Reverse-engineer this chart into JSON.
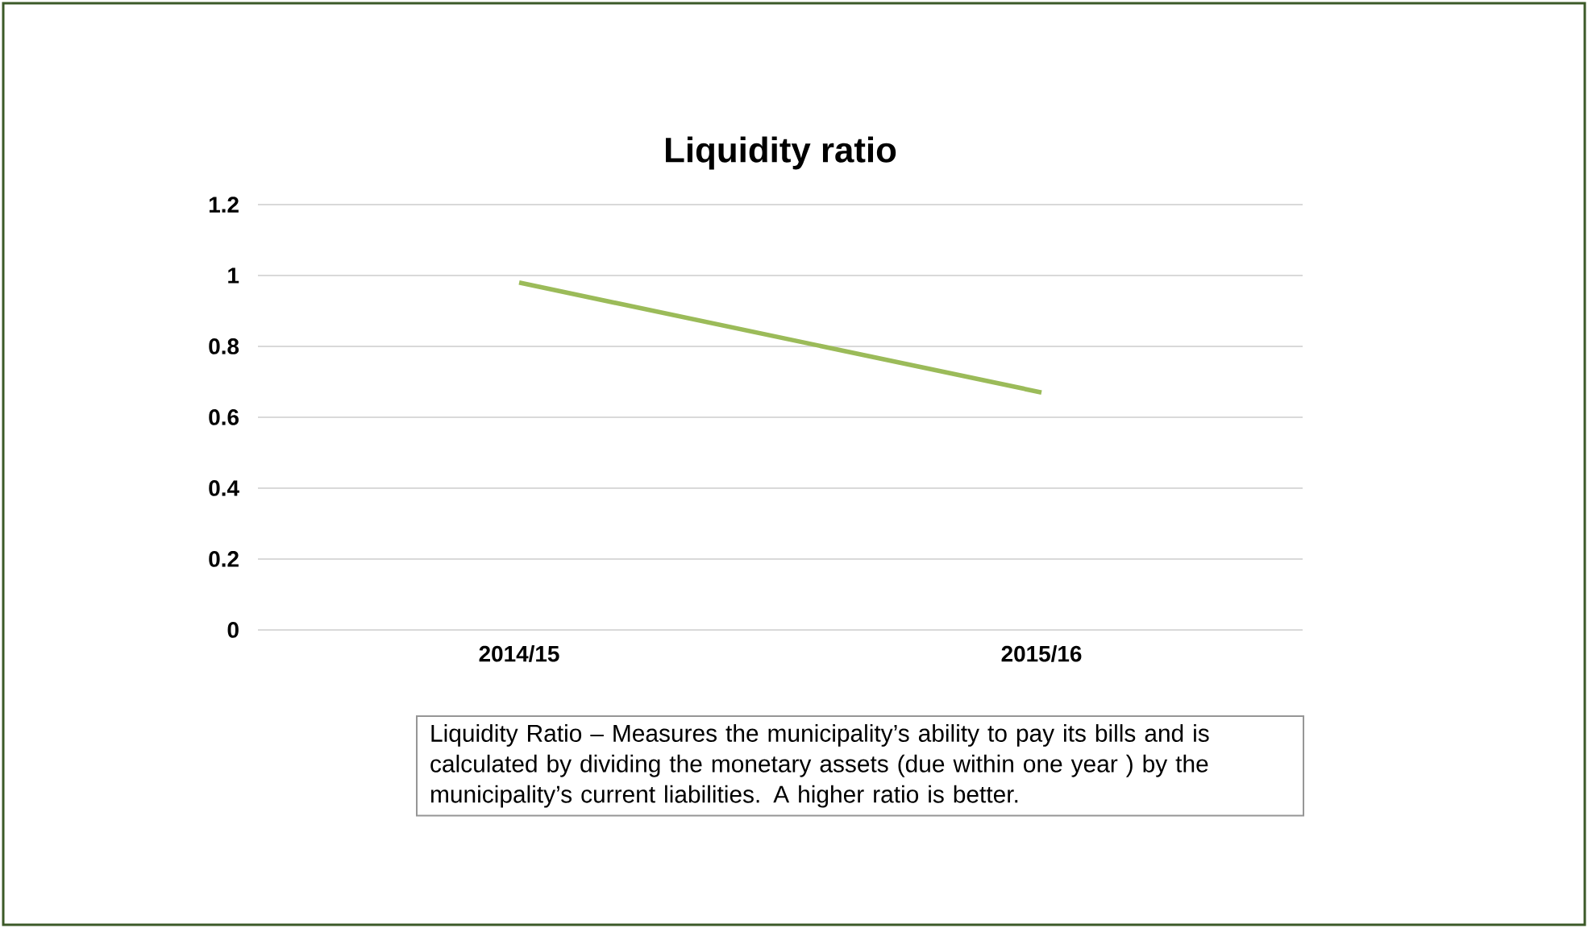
{
  "chart_data": {
    "type": "line",
    "title": "Liquidity ratio",
    "categories": [
      "2014/15",
      "2015/16"
    ],
    "series": [
      {
        "color": "#9bbb59",
        "values": [
          0.98,
          0.67
        ]
      }
    ],
    "ylim": [
      0,
      1.2
    ],
    "yticks": [
      0,
      0.2,
      0.4,
      0.6,
      0.8,
      1,
      1.2
    ],
    "grid": "y",
    "annotations": [
      "Liquidity Ratio – Measures the municipality’s ability to pay its bills and is calculated by dividing the monetary assets (due within one year ) by the municipality’s current liabilities. A higher ratio is better."
    ]
  }
}
